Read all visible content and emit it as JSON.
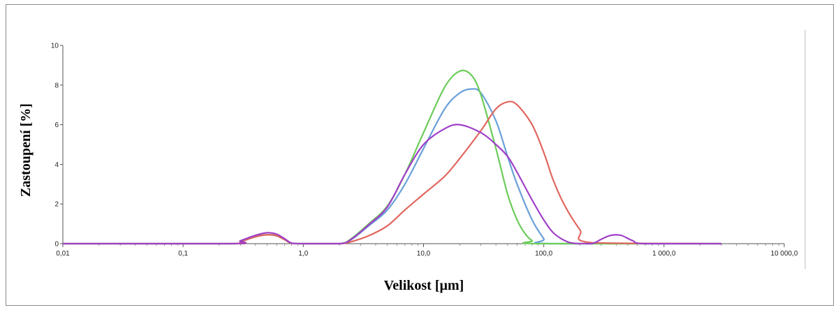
{
  "chart_data": {
    "type": "line",
    "title": "",
    "xlabel": "Velikost [µm]",
    "ylabel": "Zastoupení [%]",
    "xscale": "log",
    "xlim": [
      0.01,
      10000
    ],
    "ylim": [
      0,
      10
    ],
    "x_ticks": [
      {
        "value": 0.01,
        "label": "0,01"
      },
      {
        "value": 0.1,
        "label": "0,1"
      },
      {
        "value": 1,
        "label": "1,0"
      },
      {
        "value": 10,
        "label": "10,0"
      },
      {
        "value": 100,
        "label": "100,0"
      },
      {
        "value": 1000,
        "label": "1 000,0"
      },
      {
        "value": 10000,
        "label": "10 000,0"
      }
    ],
    "y_ticks": [
      {
        "value": 0,
        "label": "0"
      },
      {
        "value": 2,
        "label": "2"
      },
      {
        "value": 4,
        "label": "4"
      },
      {
        "value": 6,
        "label": "6"
      },
      {
        "value": 8,
        "label": "8"
      },
      {
        "value": 10,
        "label": "10"
      }
    ],
    "grid": false,
    "legend": "none",
    "series": [
      {
        "color": "#6aa0d8",
        "x": [
          0.01,
          0.25,
          0.3,
          0.4,
          0.5,
          0.6,
          0.7,
          0.8,
          1.0,
          2.0,
          2.5,
          3.5,
          5,
          7,
          10,
          15,
          20,
          25,
          30,
          40,
          50,
          60,
          80,
          100,
          110,
          3000
        ],
        "y": [
          0,
          0,
          0.1,
          0.35,
          0.45,
          0.4,
          0.2,
          0.02,
          0,
          0,
          0.2,
          0.9,
          1.7,
          3.0,
          4.8,
          6.8,
          7.6,
          7.8,
          7.6,
          6.2,
          4.4,
          3.0,
          1.2,
          0.25,
          0,
          0
        ]
      },
      {
        "color": "#6ccc5a",
        "x": [
          0.01,
          0.25,
          0.3,
          0.4,
          0.5,
          0.6,
          0.7,
          0.8,
          1.0,
          2.0,
          2.5,
          3.5,
          5,
          7,
          10,
          15,
          20,
          25,
          30,
          40,
          50,
          60,
          70,
          80,
          90,
          3000
        ],
        "y": [
          0,
          0,
          0.1,
          0.35,
          0.45,
          0.4,
          0.2,
          0.02,
          0,
          0,
          0.25,
          1.0,
          1.9,
          3.5,
          5.6,
          7.9,
          8.7,
          8.5,
          7.5,
          4.8,
          2.5,
          1.2,
          0.5,
          0.15,
          0,
          0
        ]
      },
      {
        "color": "#e0665e",
        "x": [
          0.01,
          0.25,
          0.3,
          0.4,
          0.5,
          0.6,
          0.7,
          0.8,
          1.0,
          2.0,
          2.5,
          3.5,
          5,
          7,
          10,
          15,
          20,
          30,
          40,
          50,
          60,
          80,
          100,
          120,
          150,
          200,
          250,
          3000
        ],
        "y": [
          0,
          0,
          0.1,
          0.35,
          0.45,
          0.4,
          0.2,
          0.02,
          0,
          0,
          0.1,
          0.4,
          0.9,
          1.7,
          2.5,
          3.4,
          4.3,
          5.7,
          6.8,
          7.15,
          7.0,
          6.0,
          4.6,
          3.2,
          1.9,
          0.7,
          0.05,
          0
        ]
      },
      {
        "color": "#a040c8",
        "x": [
          0.01,
          0.25,
          0.3,
          0.4,
          0.5,
          0.6,
          0.7,
          0.8,
          1.0,
          2.0,
          2.5,
          3.5,
          5,
          7,
          10,
          15,
          20,
          30,
          40,
          50,
          60,
          80,
          100,
          120,
          150,
          180,
          250,
          300,
          350,
          400,
          450,
          550,
          700,
          3000
        ],
        "y": [
          0,
          0,
          0.15,
          0.42,
          0.55,
          0.48,
          0.25,
          0.03,
          0,
          0,
          0.22,
          0.95,
          1.85,
          3.5,
          5.0,
          5.8,
          6.0,
          5.6,
          5.0,
          4.4,
          3.6,
          2.2,
          1.2,
          0.55,
          0.15,
          0.02,
          0,
          0.22,
          0.4,
          0.45,
          0.4,
          0.15,
          0,
          0
        ]
      }
    ]
  }
}
